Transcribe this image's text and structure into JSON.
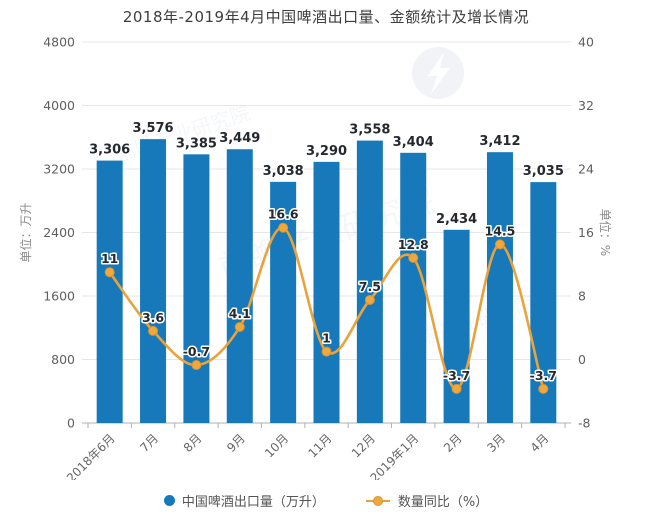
{
  "chart_data": {
    "type": "bar",
    "combo": "bar+line",
    "title": "2018年-2019年4月中国啤酒出口量、金额统计及增长情况",
    "categories": [
      "2018年6月",
      "7月",
      "8月",
      "9月",
      "10月",
      "11月",
      "12月",
      "2019年1月",
      "2月",
      "3月",
      "4月"
    ],
    "series": [
      {
        "name": "中国啤酒出口量（万升）",
        "type": "bar",
        "axis": "left",
        "color": "#1779BA",
        "values": [
          3306,
          3576,
          3385,
          3449,
          3038,
          3290,
          3558,
          3404,
          2434,
          3412,
          3035
        ],
        "labels": [
          "3,306",
          "3,576",
          "3,385",
          "3,449",
          "3,038",
          "3,290",
          "3,558",
          "3,404",
          "2,434",
          "3,412",
          "3,035"
        ]
      },
      {
        "name": "数量同比（%）",
        "type": "line",
        "axis": "right",
        "color": "#E8A33C",
        "marker_color": "#F0A73C",
        "values": [
          11,
          3.6,
          -0.7,
          4.1,
          16.6,
          1,
          7.5,
          12.8,
          -3.7,
          14.5,
          -3.7
        ],
        "labels": [
          "11",
          "3.6",
          "-0.7",
          "4.1",
          "16.6",
          "1",
          "7.5",
          "12.8",
          "-3.7",
          "14.5",
          "-3.7"
        ]
      }
    ],
    "left_axis": {
      "title": "单位：万升",
      "min": 0,
      "max": 4800,
      "step": 800,
      "ticks": [
        "4800",
        "4000",
        "3200",
        "2400",
        "1600",
        "800",
        "0"
      ]
    },
    "right_axis": {
      "title": "单位：%",
      "min": -8,
      "max": 40,
      "step": 8,
      "ticks": [
        "40",
        "32",
        "24",
        "16",
        "8",
        "0",
        "-8"
      ]
    },
    "grid": true,
    "legend_position": "bottom"
  },
  "watermark": {
    "brand_text": "前瞻产业研究院"
  },
  "colors": {
    "bar": "#1779BA",
    "line": "#E8A33C",
    "marker": "#F0A73C",
    "gridline": "#E4E7EA",
    "axis_line": "#ACB2B8",
    "tick_label": "#5F5F5F",
    "axis_title": "#8A8A8A",
    "data_label": "#24292F",
    "title": "#3D3D3D"
  }
}
